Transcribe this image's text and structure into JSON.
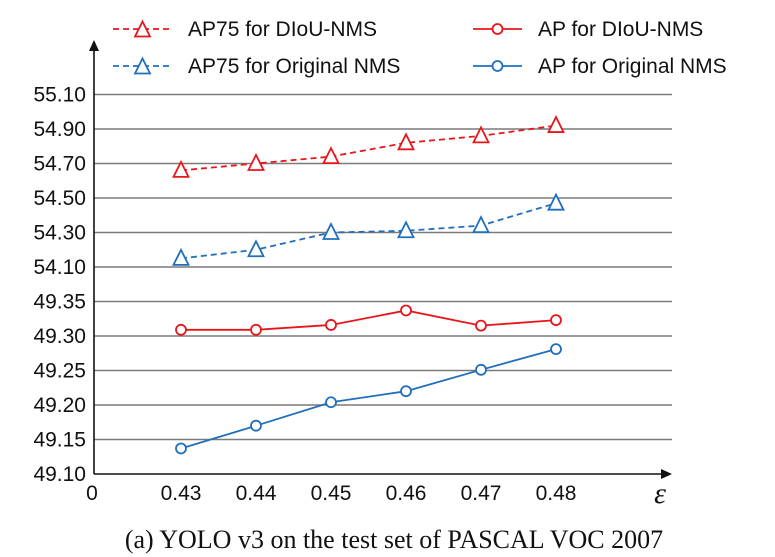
{
  "chart_data": {
    "type": "line",
    "title": "",
    "caption": "(a) YOLO v3 on the test set of PASCAL VOC 2007",
    "xlabel": "ε",
    "ylabel": "",
    "x_origin_label": "0",
    "x": [
      0.43,
      0.44,
      0.45,
      0.46,
      0.47,
      0.48
    ],
    "x_tick_labels": [
      "0.43",
      "0.44",
      "0.45",
      "0.46",
      "0.47",
      "0.48"
    ],
    "y_tick_labels": [
      "49.10",
      "49.15",
      "49.20",
      "49.25",
      "49.30",
      "49.35",
      "54.10",
      "54.30",
      "54.50",
      "54.70",
      "54.90",
      "55.10"
    ],
    "y_axis_note": "broken y-axis: lower band 49.10-49.35 (step 0.05), upper band 54.10-55.10 (step 0.20)",
    "grid": true,
    "legend_position": "top",
    "series": [
      {
        "name": "AP75 for DIoU-NMS",
        "color": "#e8161b",
        "marker": "triangle",
        "dashed": true,
        "values": [
          54.66,
          54.7,
          54.74,
          54.82,
          54.86,
          54.92
        ]
      },
      {
        "name": "AP75 for Original NMS",
        "color": "#1f6fbd",
        "marker": "triangle",
        "dashed": true,
        "values": [
          54.15,
          54.2,
          54.3,
          54.31,
          54.34,
          54.47
        ]
      },
      {
        "name": "AP for DIoU-NMS",
        "color": "#e8161b",
        "marker": "circle",
        "dashed": false,
        "values": [
          49.309,
          49.309,
          49.316,
          49.337,
          49.315,
          49.323
        ]
      },
      {
        "name": "AP for Original NMS",
        "color": "#1f6fbd",
        "marker": "circle",
        "dashed": false,
        "values": [
          49.137,
          49.17,
          49.204,
          49.22,
          49.251,
          49.281
        ]
      }
    ]
  }
}
